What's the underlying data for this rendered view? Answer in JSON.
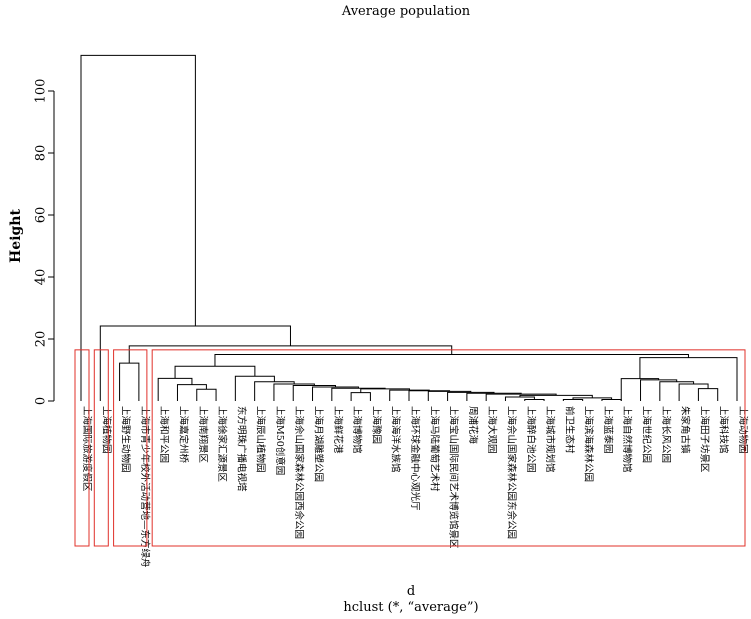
{
  "chart_data": {
    "type": "dendrogram",
    "title": "Average population",
    "ylabel": "Height",
    "xlabel": "d",
    "subtitle": "hclust (*, “average”)",
    "ylim": [
      0,
      115
    ],
    "yticks": [
      "0",
      "20",
      "40",
      "60",
      "80",
      "100"
    ],
    "ytick_values": [
      0,
      20,
      40,
      60,
      80,
      100
    ],
    "line_color": "#000000",
    "rect_color": "#e0302a",
    "leaves": [
      "上海国际旅游度假区",
      "上海植物园",
      "上海野生动物园",
      "上海市青少年校外活动营地—东方绿舟",
      "上海和平公园",
      "上海嘉定州桥",
      "上海南翔景区",
      "上海徐家汇源景区",
      "东方明珠广播电视塔",
      "上海辰山植物园",
      "上海M50创意园",
      "上海佘山国家森林公园西佘公园",
      "上海月湖雕塑公园",
      "上海鲜花港",
      "上海博物馆",
      "上海豫园",
      "上海海洋水族馆",
      "上海环球金融中心观光厅",
      "上海马陆葡萄艺术村",
      "上海宝山国际民间艺术博览馆景区",
      "周浦花海",
      "上海大观园",
      "上海佘山国家森林公园东佘公园",
      "上海醉白池公园",
      "上海城市规划馆",
      "前卫生态村",
      "上海滨海森林公园",
      "上海蓝泰园",
      "上海自然博物馆",
      "上海世纪公园",
      "上海长风公园",
      "朱家角古镇",
      "上海田子坊景区",
      "上海科技馆",
      "上海动物园"
    ],
    "merges": [
      {
        "a": "L23",
        "b": "L24",
        "height": 0.5
      },
      {
        "a": "L25",
        "b": "L26",
        "height": 0.5
      },
      {
        "a": "L27",
        "b": "L28",
        "height": 0.5
      },
      {
        "a": "L22",
        "b": "N0",
        "height": 1.3
      },
      {
        "a": "N1",
        "b": "N2",
        "height": 1.0
      },
      {
        "a": "N3",
        "b": "N4",
        "height": 1.8
      },
      {
        "a": "L21",
        "b": "N5",
        "height": 2.2
      },
      {
        "a": "L20",
        "b": "N6",
        "height": 2.5
      },
      {
        "a": "L19",
        "b": "N7",
        "height": 2.8
      },
      {
        "a": "L18",
        "b": "N8",
        "height": 3.1
      },
      {
        "a": "L17",
        "b": "N9",
        "height": 3.3
      },
      {
        "a": "L16",
        "b": "N10",
        "height": 3.5
      },
      {
        "a": "L14",
        "b": "L15",
        "height": 2.7
      },
      {
        "a": "N12",
        "b": "N11",
        "height": 3.9
      },
      {
        "a": "L13",
        "b": "N13",
        "height": 4.1
      },
      {
        "a": "L12",
        "b": "N14",
        "height": 4.5
      },
      {
        "a": "L11",
        "b": "N15",
        "height": 5.0
      },
      {
        "a": "L10",
        "b": "N16",
        "height": 5.5
      },
      {
        "a": "L9",
        "b": "N17",
        "height": 6.2
      },
      {
        "a": "L6",
        "b": "L7",
        "height": 3.8
      },
      {
        "a": "L5",
        "b": "N19",
        "height": 5.3
      },
      {
        "a": "L4",
        "b": "N20",
        "height": 7.3
      },
      {
        "a": "L32",
        "b": "L33",
        "height": 4.0
      },
      {
        "a": "L31",
        "b": "N22",
        "height": 5.5
      },
      {
        "a": "L30",
        "b": "N23",
        "height": 6.2
      },
      {
        "a": "L29",
        "b": "N24",
        "height": 6.8
      },
      {
        "a": "L28x",
        "b": "N25",
        "height": 7.2
      },
      {
        "a": "L8",
        "b": "N18",
        "height": 8.0
      },
      {
        "a": "N21",
        "b": "N27",
        "height": 11.2
      },
      {
        "a": "N26",
        "b": "L34",
        "height": 14.0
      },
      {
        "a": "N28",
        "b": "N29",
        "height": 15.0
      },
      {
        "a": "L2",
        "b": "L3",
        "height": 12.2
      },
      {
        "a": "N31",
        "b": "N30",
        "height": 17.8
      },
      {
        "a": "L1",
        "b": "N32",
        "height": 24.2
      },
      {
        "a": "L0",
        "b": "N33",
        "height": 111.5
      }
    ],
    "cluster_groups": [
      [
        0,
        0
      ],
      [
        1,
        1
      ],
      [
        2,
        3
      ],
      [
        4,
        34
      ]
    ]
  }
}
